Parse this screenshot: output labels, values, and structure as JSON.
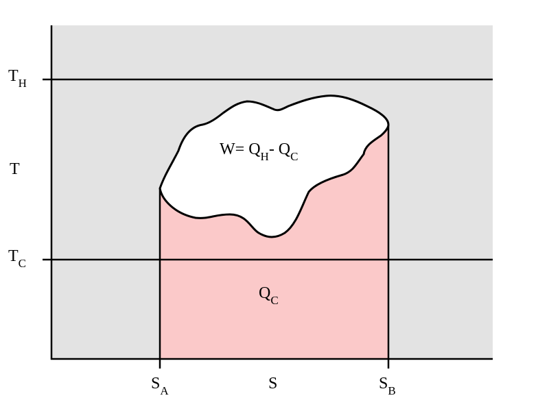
{
  "diagram": {
    "colors": {
      "plot_background": "#e3e3e3",
      "qc_region": "#fbc9c9",
      "work_region": "#ffffff",
      "lines": "#000000"
    },
    "y_labels": {
      "t_hot": {
        "main": "T",
        "sub": "H"
      },
      "t_axis": "T",
      "t_cold": {
        "main": "T",
        "sub": "C"
      }
    },
    "x_labels": {
      "s_a": {
        "main": "S",
        "sub": "A"
      },
      "s_axis": "S",
      "s_b": {
        "main": "S",
        "sub": "B"
      }
    },
    "regions": {
      "work": {
        "w": "W= Q",
        "qh_sub": "H",
        "minus": "- Q",
        "qc_sub": "C"
      },
      "heat_cold": {
        "main": "Q",
        "sub": "C"
      }
    }
  }
}
